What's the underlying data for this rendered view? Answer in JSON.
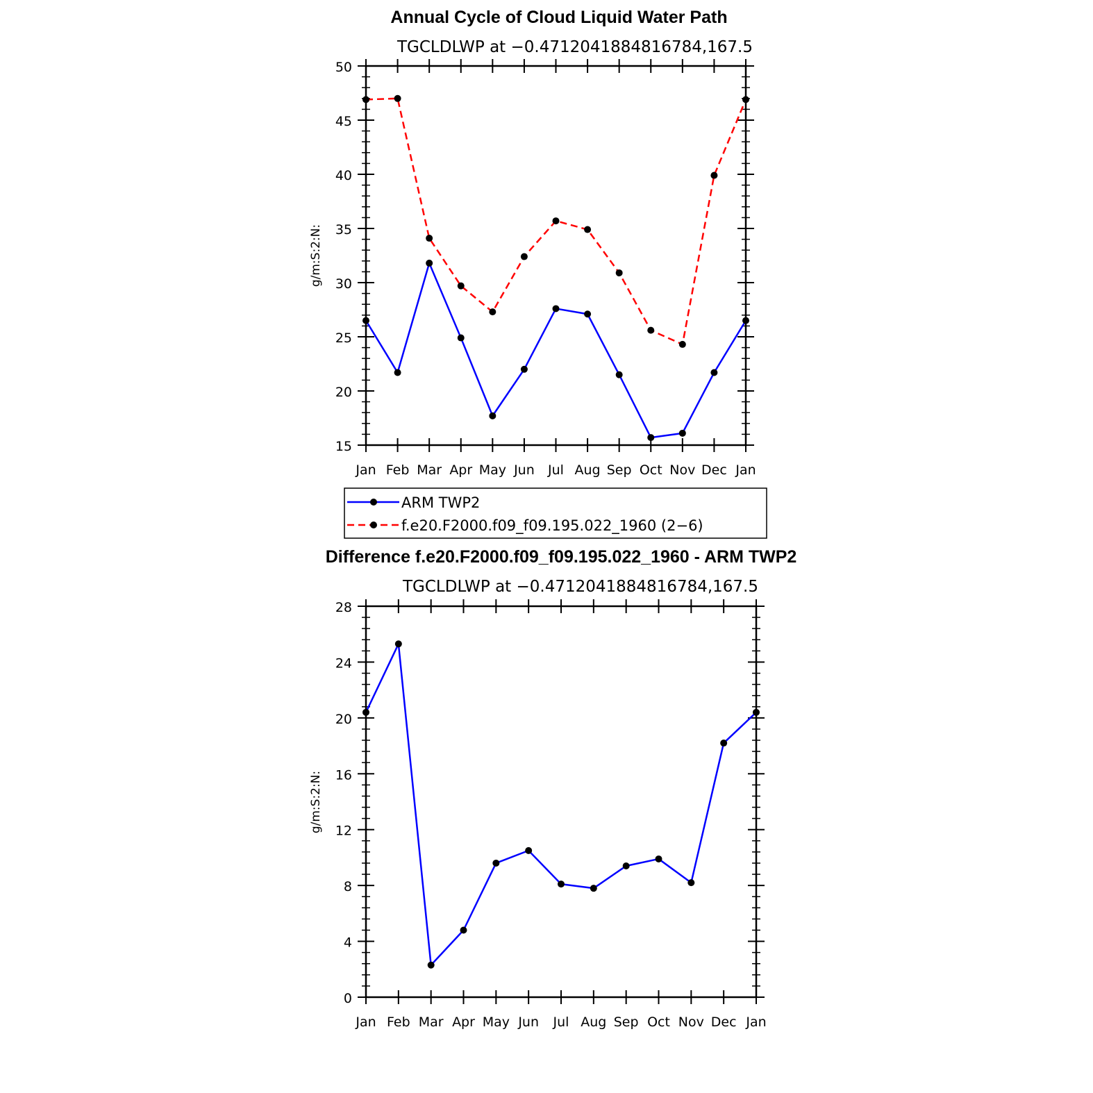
{
  "chart_data": [
    {
      "type": "line",
      "title": "Annual Cycle of Cloud Liquid Water Path",
      "subtitle": "TGCLDLWP at −0.4712041884816784,167.5",
      "ylabel": "g/m:S:2:N:",
      "ylim": [
        15,
        50
      ],
      "yticks": [
        15,
        20,
        25,
        30,
        35,
        40,
        45,
        50
      ],
      "yticks_display": [
        "15",
        "20",
        "25",
        "30",
        "35",
        "40",
        "45",
        "50"
      ],
      "categories": [
        "Jan",
        "Feb",
        "Mar",
        "Apr",
        "May",
        "Jun",
        "Jul",
        "Aug",
        "Sep",
        "Oct",
        "Nov",
        "Dec",
        "Jan"
      ],
      "series": [
        {
          "name": "ARM TWP2",
          "color": "#0000ff",
          "dash": "solid",
          "values": [
            26.5,
            21.7,
            31.8,
            24.9,
            17.7,
            22.0,
            27.6,
            27.1,
            21.5,
            15.7,
            16.1,
            21.7,
            26.5
          ]
        },
        {
          "name": "f.e20.F2000.f09_f09.195.022_1960 (2−6)",
          "color": "#ff0000",
          "dash": "dashed",
          "values": [
            46.9,
            47.0,
            34.1,
            29.7,
            27.3,
            32.4,
            35.7,
            34.9,
            30.9,
            25.6,
            24.3,
            39.9,
            46.9
          ]
        }
      ],
      "legend": [
        "ARM TWP2",
        "f.e20.F2000.f09_f09.195.022_1960 (2−6)"
      ]
    },
    {
      "type": "line",
      "title": "Difference f.e20.F2000.f09_f09.195.022_1960 - ARM TWP2",
      "subtitle": "TGCLDLWP at −0.4712041884816784,167.5",
      "ylabel": "g/m:S:2:N:",
      "ylim": [
        0,
        28
      ],
      "yticks": [
        0,
        4,
        8,
        12,
        16,
        20,
        24,
        28
      ],
      "yticks_display": [
        "0",
        "4",
        "8",
        "12",
        "16",
        "20",
        "24",
        "28"
      ],
      "categories": [
        "Jan",
        "Feb",
        "Mar",
        "Apr",
        "May",
        "Jun",
        "Jul",
        "Aug",
        "Sep",
        "Oct",
        "Nov",
        "Dec",
        "Jan"
      ],
      "series": [
        {
          "name": "Difference",
          "color": "#0000ff",
          "dash": "solid",
          "values": [
            20.4,
            25.3,
            2.3,
            4.8,
            9.6,
            10.5,
            8.1,
            7.8,
            9.4,
            9.9,
            8.2,
            18.2,
            20.4
          ]
        }
      ]
    }
  ]
}
